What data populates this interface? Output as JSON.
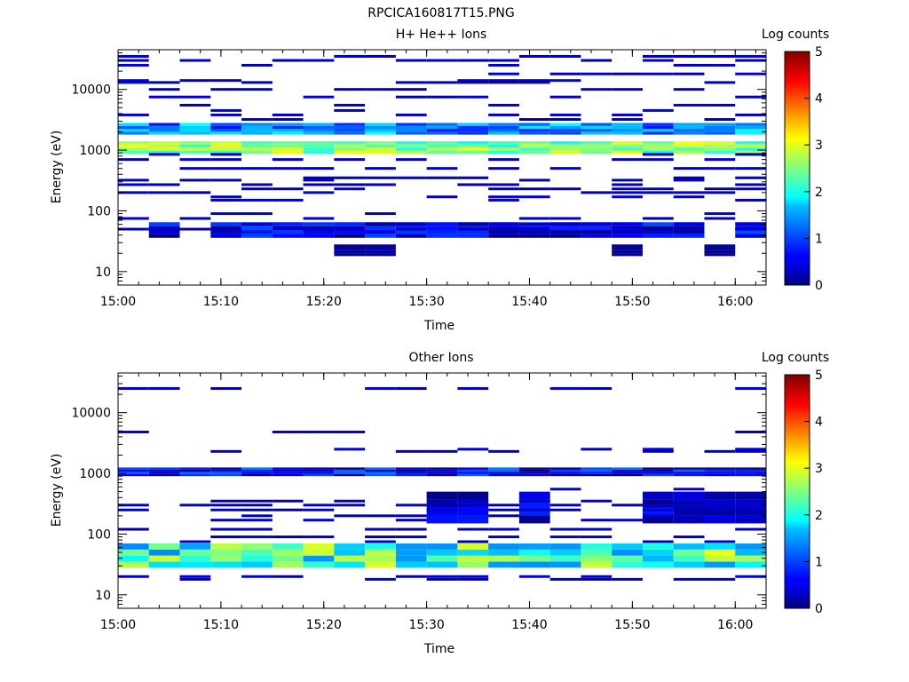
{
  "figure": {
    "title": "RPCICA160817T15.PNG"
  },
  "colorbar": {
    "label": "Log counts",
    "ticks": [
      "0",
      "1",
      "2",
      "3",
      "4",
      "5"
    ],
    "range": [
      0,
      5
    ]
  },
  "chart_data": [
    {
      "type": "heatmap",
      "title": "H+ He++ Ions",
      "xlabel": "Time",
      "ylabel": "Energy (eV)",
      "ylog": true,
      "xlim": [
        "15:00",
        "16:03"
      ],
      "ylim": [
        6,
        45000
      ],
      "x_ticks": [
        "15:00",
        "15:10",
        "15:20",
        "15:30",
        "15:40",
        "15:50",
        "16:00"
      ],
      "y_ticks": [
        "10",
        "100",
        "1000",
        "10000"
      ],
      "colorbar_label": "Log counts",
      "colorbar_range": [
        0,
        5
      ],
      "time_bins": [
        "15:00",
        "15:03",
        "15:06",
        "15:09",
        "15:12",
        "15:15",
        "15:18",
        "15:21",
        "15:24",
        "15:27",
        "15:30",
        "15:33",
        "15:36",
        "15:39",
        "15:42",
        "15:45",
        "15:48",
        "15:51",
        "15:54",
        "15:57",
        "16:00"
      ],
      "bands": [
        {
          "e_low": 870,
          "e_high": 1400,
          "base": 2.5,
          "var": 0.6,
          "coverage": 1.0
        },
        {
          "e_low": 1800,
          "e_high": 2800,
          "base": 1.3,
          "var": 0.6,
          "coverage": 1.0
        },
        {
          "e_low": 36,
          "e_high": 65,
          "base": 0.5,
          "var": 0.5,
          "coverage": 0.85
        },
        {
          "e_low": 18,
          "e_high": 28,
          "base": 0.1,
          "var": 0.1,
          "coverage": 0.15
        },
        {
          "e_low": 6,
          "e_high": 11,
          "base": 0.05,
          "var": 0.05,
          "coverage": 0.05,
          "only": [
            20
          ]
        }
      ],
      "sparse_lines": [
        35000,
        30000,
        25000,
        18000,
        14000,
        13000,
        10000,
        7500,
        5500,
        4500,
        3800,
        3200,
        850,
        700,
        500,
        350,
        320,
        270,
        230,
        200,
        170,
        150,
        90,
        75,
        60,
        50
      ]
    },
    {
      "type": "heatmap",
      "title": "Other Ions",
      "xlabel": "Time",
      "ylabel": "Energy (eV)",
      "ylog": true,
      "xlim": [
        "15:00",
        "16:03"
      ],
      "ylim": [
        6,
        45000
      ],
      "x_ticks": [
        "15:00",
        "15:10",
        "15:20",
        "15:30",
        "15:40",
        "15:50",
        "16:00"
      ],
      "y_ticks": [
        "10",
        "100",
        "1000",
        "10000"
      ],
      "colorbar_label": "Log counts",
      "colorbar_range": [
        0,
        5
      ],
      "time_bins": [
        "15:00",
        "15:03",
        "15:06",
        "15:09",
        "15:12",
        "15:15",
        "15:18",
        "15:21",
        "15:24",
        "15:27",
        "15:30",
        "15:33",
        "15:36",
        "15:39",
        "15:42",
        "15:45",
        "15:48",
        "15:51",
        "15:54",
        "15:57",
        "16:00"
      ],
      "bands": [
        {
          "e_low": 900,
          "e_high": 1250,
          "base": 0.6,
          "var": 0.6,
          "coverage": 1.0
        },
        {
          "e_low": 28,
          "e_high": 70,
          "base": 2.2,
          "var": 0.9,
          "coverage": 1.0
        },
        {
          "e_low": 150,
          "e_high": 500,
          "base": 0.3,
          "var": 0.5,
          "coverage": 0.6,
          "from": 8
        }
      ],
      "sparse_lines": [
        25000,
        4800,
        2500,
        2300,
        550,
        350,
        300,
        250,
        200,
        170,
        120,
        90,
        75,
        20,
        18
      ]
    }
  ]
}
